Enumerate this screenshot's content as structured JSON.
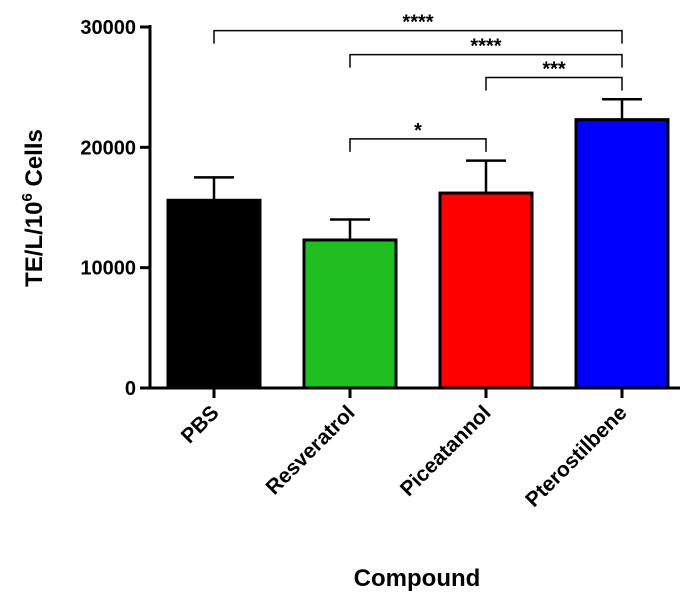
{
  "chart_data": {
    "type": "bar",
    "title": "",
    "xlabel": "Compound",
    "ylabel_main": "TE/L/10",
    "ylabel_exp": "6",
    "ylabel_tail": " Cells",
    "ylim": [
      0,
      30000
    ],
    "yticks": [
      0,
      10000,
      20000,
      30000
    ],
    "ytick_labels": [
      "0",
      "10000",
      "20000",
      "30000"
    ],
    "categories": [
      "PBS",
      "Resveratrol",
      "Piceatannol",
      "Pterostilbene"
    ],
    "values": [
      15600,
      12300,
      16200,
      22300
    ],
    "errors": [
      1900,
      1700,
      2700,
      1700
    ],
    "colors": [
      "#000000",
      "#1fbf1f",
      "#ff0000",
      "#0000ff"
    ],
    "grid": false,
    "legend": "none",
    "significance": [
      {
        "from": 0,
        "to": 3,
        "label": "****",
        "y": 29700
      },
      {
        "from": 1,
        "to": 3,
        "label": "****",
        "y": 27700
      },
      {
        "from": 2,
        "to": 3,
        "label": "***",
        "y": 25800
      },
      {
        "from": 1,
        "to": 2,
        "label": "*",
        "y": 20700
      }
    ]
  }
}
